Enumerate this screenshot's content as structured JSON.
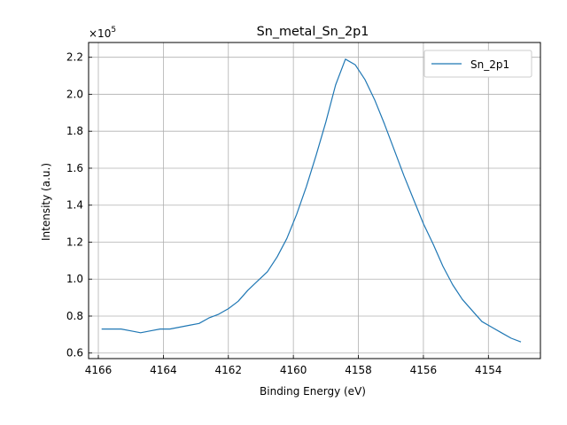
{
  "chart_data": {
    "type": "line",
    "title": "Sn_metal_Sn_2p1",
    "xlabel": "Binding Energy (eV)",
    "ylabel": "Intensity (a.u.)",
    "y_scale_label": "×10",
    "y_scale_exponent": "5",
    "xlim": [
      4166.3,
      4152.4
    ],
    "ylim": [
      0.57,
      2.28
    ],
    "x_inverted": true,
    "grid": true,
    "legend_position": "top-right",
    "x_ticks": [
      4166,
      4164,
      4162,
      4160,
      4158,
      4156,
      4154
    ],
    "y_ticks": [
      0.6,
      0.8,
      1.0,
      1.2,
      1.4,
      1.6,
      1.8,
      2.0,
      2.2
    ],
    "x_tick_labels": [
      "4166",
      "4164",
      "4162",
      "4160",
      "4158",
      "4156",
      "4154"
    ],
    "y_tick_labels": [
      "0.6",
      "0.8",
      "1.0",
      "1.2",
      "1.4",
      "1.6",
      "1.8",
      "2.0",
      "2.2"
    ],
    "colors": {
      "series": "#1f77b4",
      "grid": "#b0b0b0"
    },
    "series": [
      {
        "name": "Sn_2p1",
        "x": [
          4165.9,
          4165.6,
          4165.3,
          4165.0,
          4164.7,
          4164.4,
          4164.1,
          4163.8,
          4163.5,
          4163.2,
          4162.9,
          4162.6,
          4162.3,
          4162.0,
          4161.7,
          4161.4,
          4161.1,
          4160.8,
          4160.5,
          4160.2,
          4159.9,
          4159.6,
          4159.3,
          4159.0,
          4158.7,
          4158.4,
          4158.1,
          4157.8,
          4157.5,
          4157.2,
          4156.9,
          4156.6,
          4156.3,
          4156.0,
          4155.7,
          4155.4,
          4155.1,
          4154.8,
          4154.5,
          4154.2,
          4153.9,
          4153.6,
          4153.3,
          4153.0
        ],
        "y": [
          0.73,
          0.73,
          0.73,
          0.72,
          0.71,
          0.72,
          0.73,
          0.73,
          0.74,
          0.75,
          0.76,
          0.79,
          0.81,
          0.84,
          0.88,
          0.94,
          0.99,
          1.04,
          1.12,
          1.22,
          1.35,
          1.5,
          1.67,
          1.85,
          2.05,
          2.19,
          2.16,
          2.08,
          1.97,
          1.84,
          1.7,
          1.56,
          1.43,
          1.3,
          1.19,
          1.07,
          0.97,
          0.89,
          0.83,
          0.77,
          0.74,
          0.71,
          0.68,
          0.66
        ]
      }
    ]
  }
}
